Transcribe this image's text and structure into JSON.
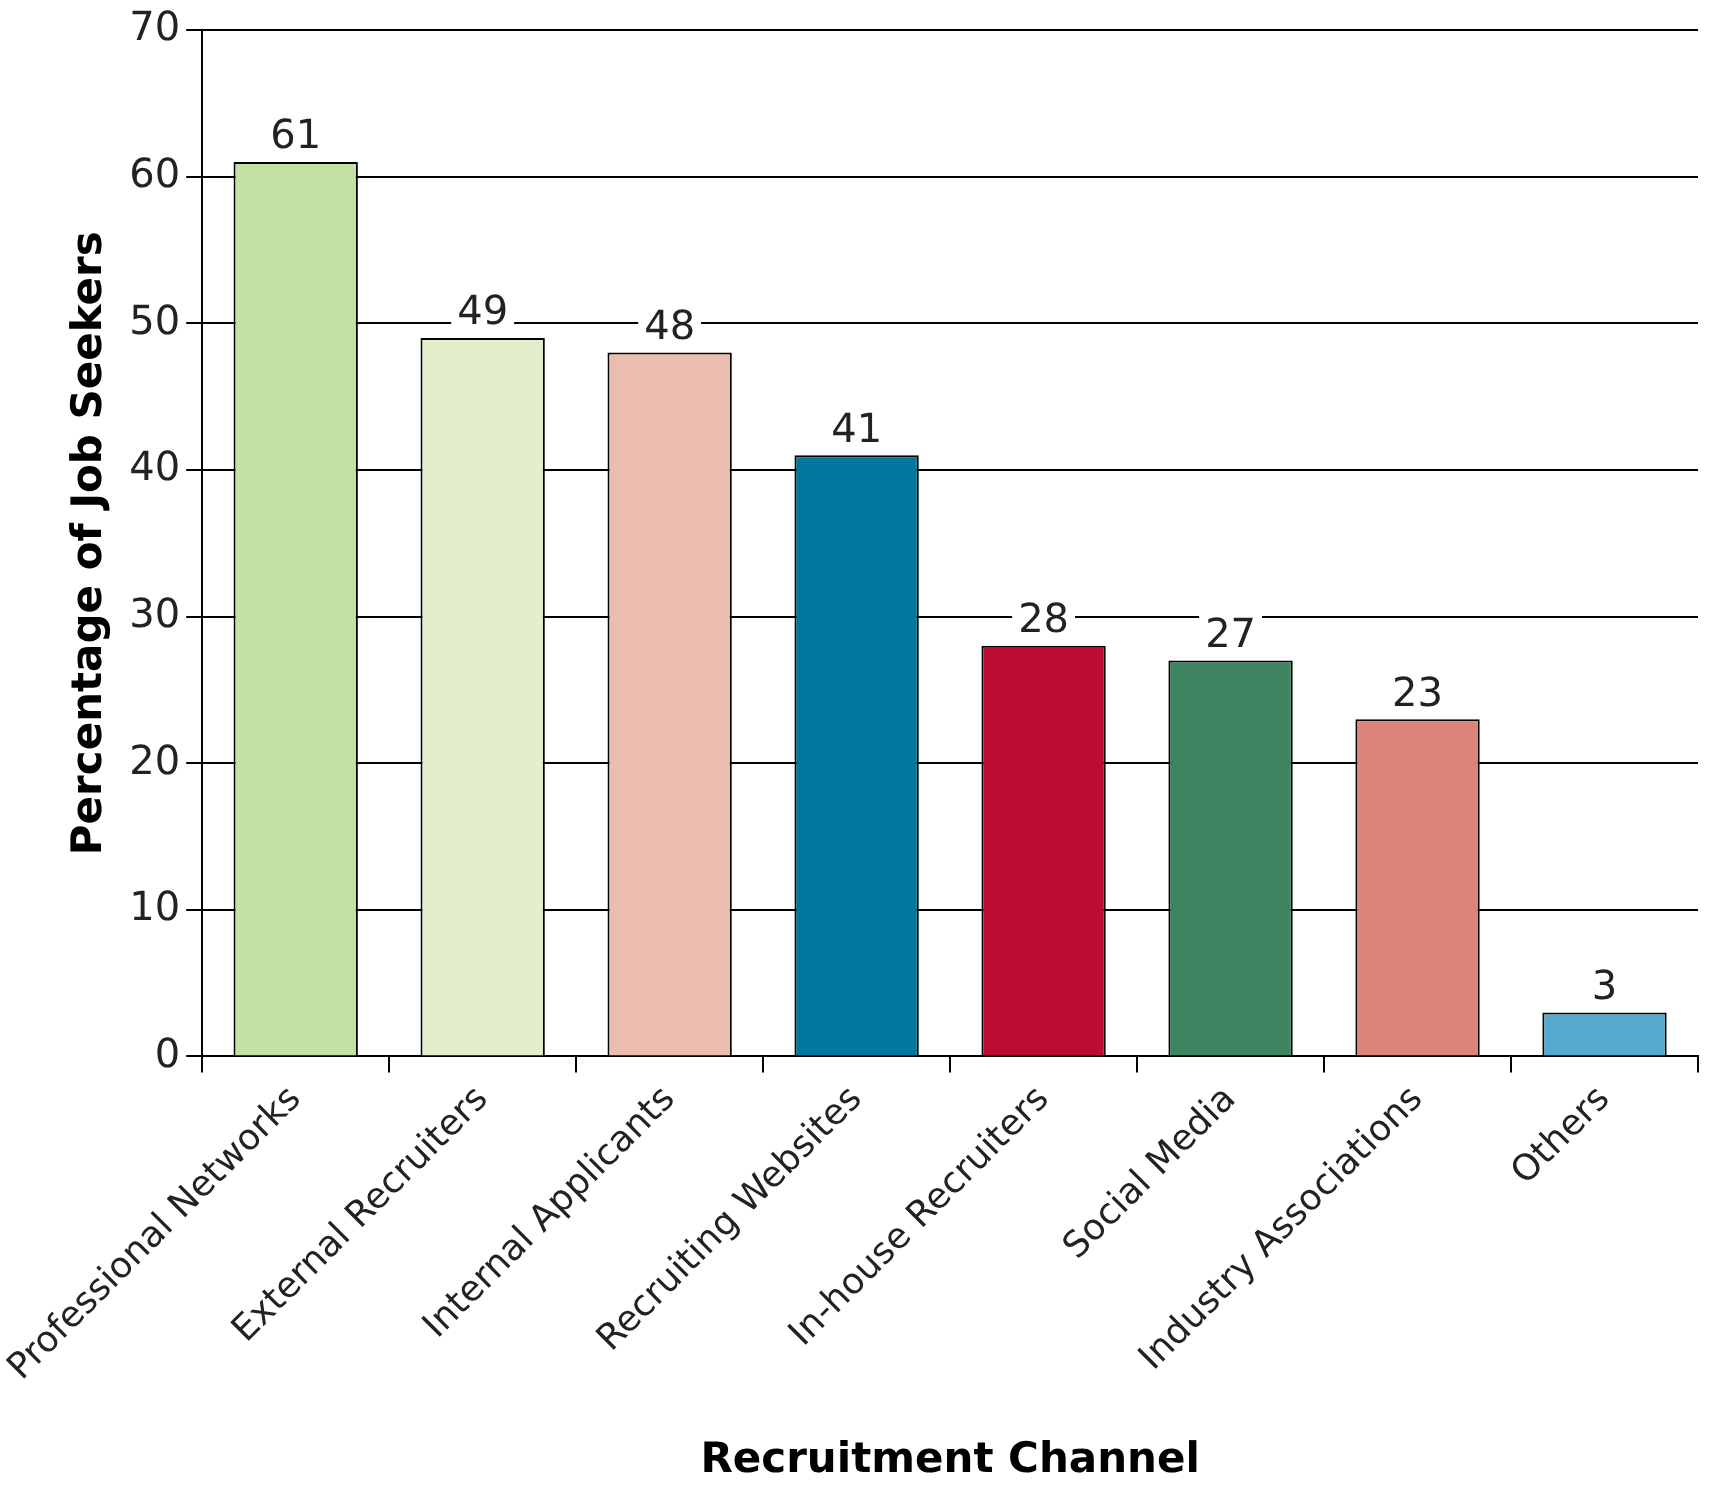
{
  "chart_data": {
    "type": "bar",
    "xlabel": "Recruitment Channel",
    "ylabel": "Percentage of Job Seekers",
    "categories": [
      "Professional Networks",
      "External Recruiters",
      "Internal Applicants",
      "Recruiting Websites",
      "In-house Recruiters",
      "Social Media",
      "Industry Associations",
      "Others"
    ],
    "values": [
      61,
      49,
      48,
      41,
      28,
      27,
      23,
      3
    ],
    "colors": [
      "#c5e0a5",
      "#e3efcc",
      "#ebbcb0",
      "#00789e",
      "#bb0d33",
      "#3c8560",
      "#dc847a",
      "#56a9cf"
    ],
    "ylim": [
      0,
      70
    ],
    "yticks": [
      0,
      10,
      20,
      30,
      40,
      50,
      60,
      70
    ],
    "grid": "y",
    "legend": false,
    "data_labels": true
  }
}
